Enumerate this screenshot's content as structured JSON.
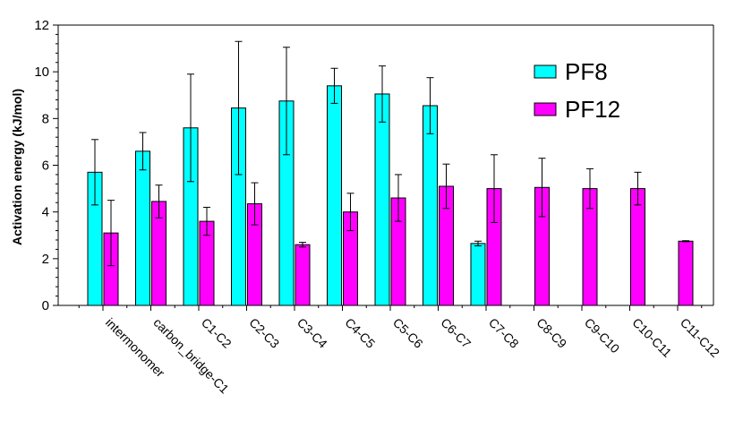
{
  "chart_data": {
    "type": "bar",
    "title": "",
    "xlabel": "",
    "ylabel": "Activation energy (kJ/mol)",
    "ylim": [
      0,
      12
    ],
    "yticks": [
      0,
      2,
      4,
      6,
      8,
      10,
      12
    ],
    "categories": [
      "intermonomer",
      "carbon_bridge-C1",
      "C1-C2",
      "C2-C3",
      "C3-C4",
      "C4-C5",
      "C5-C6",
      "C6-C7",
      "C7-C8",
      "C8-C9",
      "C9-C10",
      "C10-C11",
      "C11-C12"
    ],
    "series": [
      {
        "name": "PF8",
        "color": "#00FFFF",
        "values": [
          5.7,
          6.6,
          7.6,
          8.45,
          8.75,
          9.4,
          9.05,
          8.55,
          2.65,
          null,
          null,
          null,
          null
        ],
        "error": [
          1.4,
          0.8,
          2.3,
          2.85,
          2.3,
          0.75,
          1.2,
          1.2,
          0.1,
          null,
          null,
          null,
          null
        ]
      },
      {
        "name": "PF12",
        "color": "#FF00FF",
        "values": [
          3.1,
          4.45,
          3.6,
          4.35,
          2.6,
          4.0,
          4.6,
          5.1,
          5.0,
          5.05,
          5.0,
          5.0,
          2.75
        ],
        "error": [
          1.4,
          0.7,
          0.6,
          0.9,
          0.1,
          0.8,
          1.0,
          0.95,
          1.45,
          1.25,
          0.85,
          0.7,
          0.02
        ]
      }
    ],
    "legend": "top-right",
    "grid": false
  }
}
